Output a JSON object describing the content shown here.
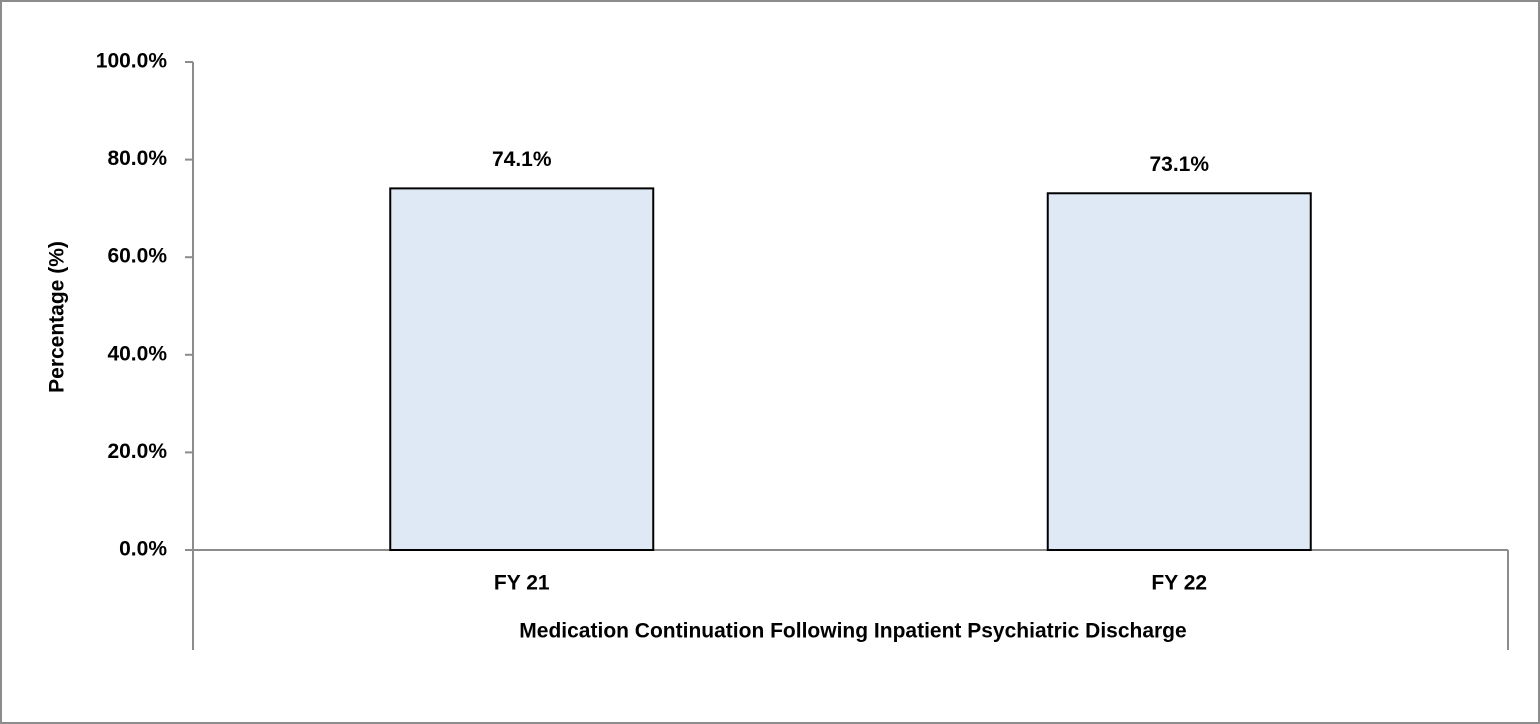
{
  "chart_data": {
    "type": "bar",
    "categories": [
      "FY 21",
      "FY 22"
    ],
    "values": [
      74.1,
      73.1
    ],
    "value_labels": [
      "74.1%",
      "73.1%"
    ],
    "color": "#dee9f5",
    "xlabel": "Medication Continuation Following Inpatient Psychiatric Discharge",
    "ylabel": "Percentage (%)",
    "ylim": [
      0,
      100
    ],
    "yticks": [
      {
        "value": 0,
        "label": "0.0%"
      },
      {
        "value": 20,
        "label": "20.0%"
      },
      {
        "value": 40,
        "label": "40.0%"
      },
      {
        "value": 60,
        "label": "60.0%"
      },
      {
        "value": 80,
        "label": "80.0%"
      },
      {
        "value": 100,
        "label": "100.0%"
      }
    ],
    "grid": false
  }
}
